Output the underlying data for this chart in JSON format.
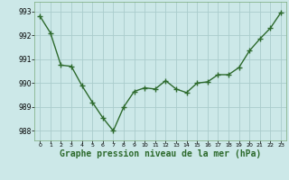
{
  "x": [
    0,
    1,
    2,
    3,
    4,
    5,
    6,
    7,
    8,
    9,
    10,
    11,
    12,
    13,
    14,
    15,
    16,
    17,
    18,
    19,
    20,
    21,
    22,
    23
  ],
  "y": [
    992.8,
    992.1,
    990.75,
    990.7,
    989.9,
    989.2,
    988.55,
    988.0,
    989.0,
    989.65,
    989.8,
    989.75,
    990.1,
    989.75,
    989.6,
    990.0,
    990.05,
    990.35,
    990.35,
    990.65,
    991.35,
    991.85,
    992.3,
    992.95
  ],
  "line_color": "#2d6a2d",
  "marker": "+",
  "markersize": 4,
  "linewidth": 1.0,
  "bg_color": "#cce8e8",
  "grid_color": "#aacccc",
  "xlabel": "Graphe pression niveau de la mer (hPa)",
  "xlabel_fontsize": 7,
  "ytick_labels": [
    "988",
    "989",
    "990",
    "991",
    "992",
    "993"
  ],
  "ytick_vals": [
    988,
    989,
    990,
    991,
    992,
    993
  ],
  "xticks": [
    0,
    1,
    2,
    3,
    4,
    5,
    6,
    7,
    8,
    9,
    10,
    11,
    12,
    13,
    14,
    15,
    16,
    17,
    18,
    19,
    20,
    21,
    22,
    23
  ],
  "ylim": [
    987.6,
    993.4
  ],
  "xlim": [
    -0.5,
    23.5
  ]
}
